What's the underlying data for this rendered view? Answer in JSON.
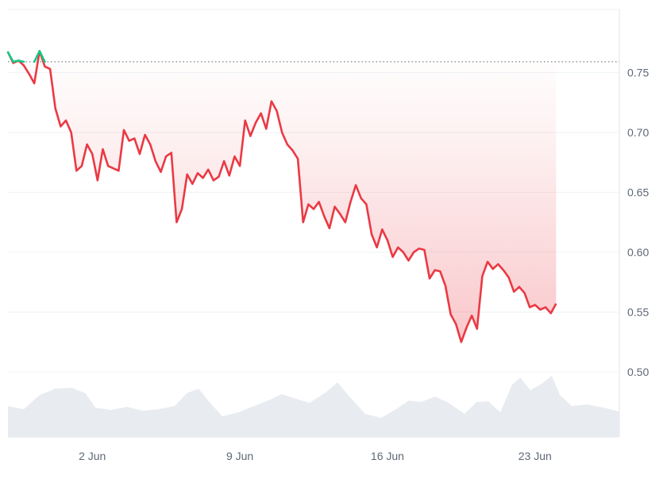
{
  "chart_data": {
    "type": "line",
    "title": "",
    "xlabel": "",
    "ylabel": "",
    "x_ticks": [
      "2 Jun",
      "9 Jun",
      "16 Jun",
      "23 Jun"
    ],
    "y_ticks": [
      "0.50",
      "0.55",
      "0.60",
      "0.65",
      "0.70",
      "0.75"
    ],
    "ylim": [
      0.45,
      0.8
    ],
    "xlim": [
      "2024-05-29",
      "2024-06-27"
    ],
    "reference_value": 0.759,
    "grid": true,
    "legend": "none",
    "colors": {
      "above_reference": "#16c784",
      "below_reference": "#ea3943",
      "fill": "#ea3943",
      "volume": "#e8ebf0",
      "grid": "#eff2f5",
      "reference_line": "#7a808a"
    },
    "series": [
      {
        "values": [
          [
            "2024-05-29",
            0.767
          ],
          [
            "2024-05-29T06",
            0.758
          ],
          [
            "2024-05-29T12",
            0.76
          ],
          [
            "2024-05-29T18",
            0.756
          ],
          [
            "2024-05-30",
            0.749
          ],
          [
            "2024-05-30T06",
            0.741
          ],
          [
            "2024-05-30T12",
            0.768
          ],
          [
            "2024-05-30T18",
            0.755
          ],
          [
            "2024-05-31",
            0.753
          ],
          [
            "2024-05-31T06",
            0.72
          ],
          [
            "2024-05-31T12",
            0.705
          ],
          [
            "2024-05-31T18",
            0.71
          ],
          [
            "2024-06-01",
            0.7
          ],
          [
            "2024-06-01T06",
            0.668
          ],
          [
            "2024-06-01T12",
            0.672
          ],
          [
            "2024-06-01T18",
            0.69
          ],
          [
            "2024-06-02",
            0.682
          ],
          [
            "2024-06-02T06",
            0.66
          ],
          [
            "2024-06-02T12",
            0.686
          ],
          [
            "2024-06-02T18",
            0.672
          ],
          [
            "2024-06-03",
            0.67
          ],
          [
            "2024-06-03T06",
            0.668
          ],
          [
            "2024-06-03T12",
            0.702
          ],
          [
            "2024-06-03T18",
            0.693
          ],
          [
            "2024-06-04",
            0.695
          ],
          [
            "2024-06-04T06",
            0.682
          ],
          [
            "2024-06-04T12",
            0.698
          ],
          [
            "2024-06-04T18",
            0.69
          ],
          [
            "2024-06-05",
            0.676
          ],
          [
            "2024-06-05T06",
            0.667
          ],
          [
            "2024-06-05T12",
            0.68
          ],
          [
            "2024-06-05T18",
            0.683
          ],
          [
            "2024-06-06",
            0.625
          ],
          [
            "2024-06-06T06",
            0.636
          ],
          [
            "2024-06-06T12",
            0.665
          ],
          [
            "2024-06-06T18",
            0.657
          ],
          [
            "2024-06-07",
            0.666
          ],
          [
            "2024-06-07T06",
            0.662
          ],
          [
            "2024-06-07T12",
            0.669
          ],
          [
            "2024-06-07T18",
            0.66
          ],
          [
            "2024-06-08",
            0.663
          ],
          [
            "2024-06-08T06",
            0.676
          ],
          [
            "2024-06-08T12",
            0.664
          ],
          [
            "2024-06-08T18",
            0.68
          ],
          [
            "2024-06-09",
            0.672
          ],
          [
            "2024-06-09T06",
            0.71
          ],
          [
            "2024-06-09T12",
            0.697
          ],
          [
            "2024-06-09T18",
            0.708
          ],
          [
            "2024-06-10",
            0.716
          ],
          [
            "2024-06-10T06",
            0.703
          ],
          [
            "2024-06-10T12",
            0.726
          ],
          [
            "2024-06-10T18",
            0.718
          ],
          [
            "2024-06-11",
            0.7
          ],
          [
            "2024-06-11T06",
            0.69
          ],
          [
            "2024-06-11T12",
            0.685
          ],
          [
            "2024-06-11T18",
            0.678
          ],
          [
            "2024-06-12",
            0.625
          ],
          [
            "2024-06-12T06",
            0.64
          ],
          [
            "2024-06-12T12",
            0.636
          ],
          [
            "2024-06-12T18",
            0.642
          ],
          [
            "2024-06-13",
            0.63
          ],
          [
            "2024-06-13T06",
            0.62
          ],
          [
            "2024-06-13T12",
            0.638
          ],
          [
            "2024-06-13T18",
            0.632
          ],
          [
            "2024-06-14",
            0.625
          ],
          [
            "2024-06-14T06",
            0.642
          ],
          [
            "2024-06-14T12",
            0.656
          ],
          [
            "2024-06-14T18",
            0.645
          ],
          [
            "2024-06-15",
            0.64
          ],
          [
            "2024-06-15T06",
            0.615
          ],
          [
            "2024-06-15T12",
            0.604
          ],
          [
            "2024-06-15T18",
            0.619
          ],
          [
            "2024-06-16",
            0.61
          ],
          [
            "2024-06-16T06",
            0.596
          ],
          [
            "2024-06-16T12",
            0.604
          ],
          [
            "2024-06-16T18",
            0.6
          ],
          [
            "2024-06-17",
            0.593
          ],
          [
            "2024-06-17T06",
            0.6
          ],
          [
            "2024-06-17T12",
            0.603
          ],
          [
            "2024-06-17T18",
            0.602
          ],
          [
            "2024-06-18",
            0.578
          ],
          [
            "2024-06-18T06",
            0.585
          ],
          [
            "2024-06-18T12",
            0.584
          ],
          [
            "2024-06-18T18",
            0.572
          ],
          [
            "2024-06-19",
            0.548
          ],
          [
            "2024-06-19T06",
            0.54
          ],
          [
            "2024-06-19T12",
            0.525
          ],
          [
            "2024-06-19T18",
            0.537
          ],
          [
            "2024-06-20",
            0.547
          ],
          [
            "2024-06-20T06",
            0.536
          ],
          [
            "2024-06-20T12",
            0.58
          ],
          [
            "2024-06-20T18",
            0.592
          ],
          [
            "2024-06-21",
            0.586
          ],
          [
            "2024-06-21T06",
            0.59
          ],
          [
            "2024-06-21T12",
            0.585
          ],
          [
            "2024-06-21T18",
            0.579
          ],
          [
            "2024-06-22",
            0.567
          ],
          [
            "2024-06-22T06",
            0.571
          ],
          [
            "2024-06-22T12",
            0.566
          ],
          [
            "2024-06-22T18",
            0.554
          ],
          [
            "2024-06-23",
            0.556
          ],
          [
            "2024-06-23T06",
            0.552
          ],
          [
            "2024-06-23T12",
            0.554
          ],
          [
            "2024-06-23T18",
            0.549
          ],
          [
            "2024-06-24",
            0.557
          ]
        ]
      }
    ]
  }
}
